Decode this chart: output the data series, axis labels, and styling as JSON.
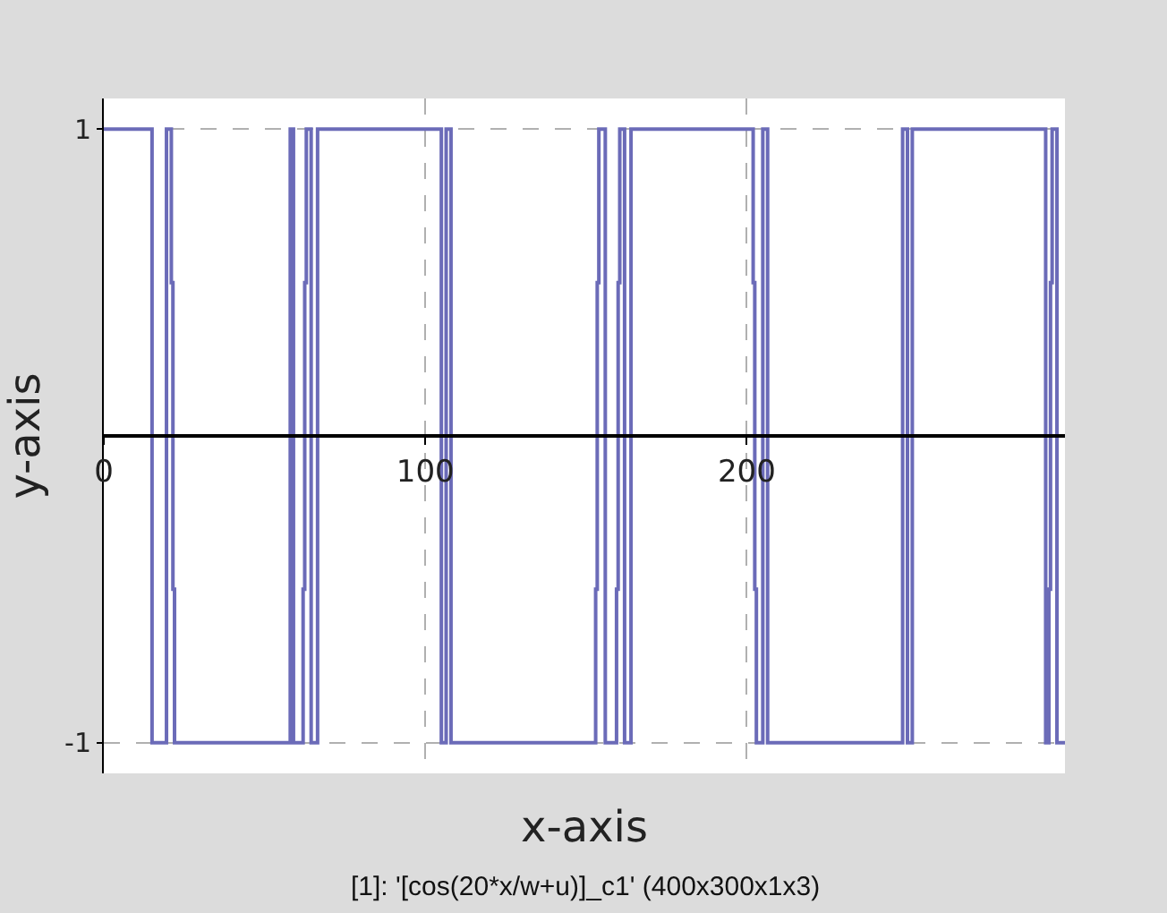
{
  "chart_data": {
    "type": "step",
    "xlabel": "x-axis",
    "ylabel": "y-axis",
    "annotations": [
      "[1]: '[cos(20*x/w+u)]_c1' (400x300x1x3)"
    ],
    "x": [
      0,
      15,
      19.5,
      21,
      21.5,
      22,
      58,
      59,
      62,
      62.5,
      63,
      64.5,
      66.5,
      105,
      106.5,
      108,
      153,
      153.5,
      154,
      156,
      159.5,
      160,
      160.5,
      162,
      164,
      202,
      202.5,
      203,
      205,
      206.5,
      248.5,
      250,
      251.5,
      293,
      294,
      294.5,
      295,
      296.5,
      299
    ],
    "series": [
      {
        "color": "#6b6bb8",
        "values": [
          1,
          -1,
          1,
          0.5,
          -0.5,
          -1,
          1,
          -1,
          -0.5,
          0.5,
          1,
          -1,
          1,
          -1,
          1,
          -1,
          -0.5,
          0.5,
          1,
          -1,
          -0.5,
          0.5,
          1,
          -1,
          1,
          0.5,
          -0.5,
          -1,
          1,
          -1,
          1,
          -1,
          1,
          -1,
          -0.5,
          0.5,
          1,
          -1,
          -1
        ]
      }
    ],
    "xlim": [
      0,
      299
    ],
    "ylim": [
      -1.1,
      1.1
    ],
    "xticks": [
      0,
      100,
      200
    ],
    "yticks": [
      -1,
      1
    ],
    "grid": true
  }
}
